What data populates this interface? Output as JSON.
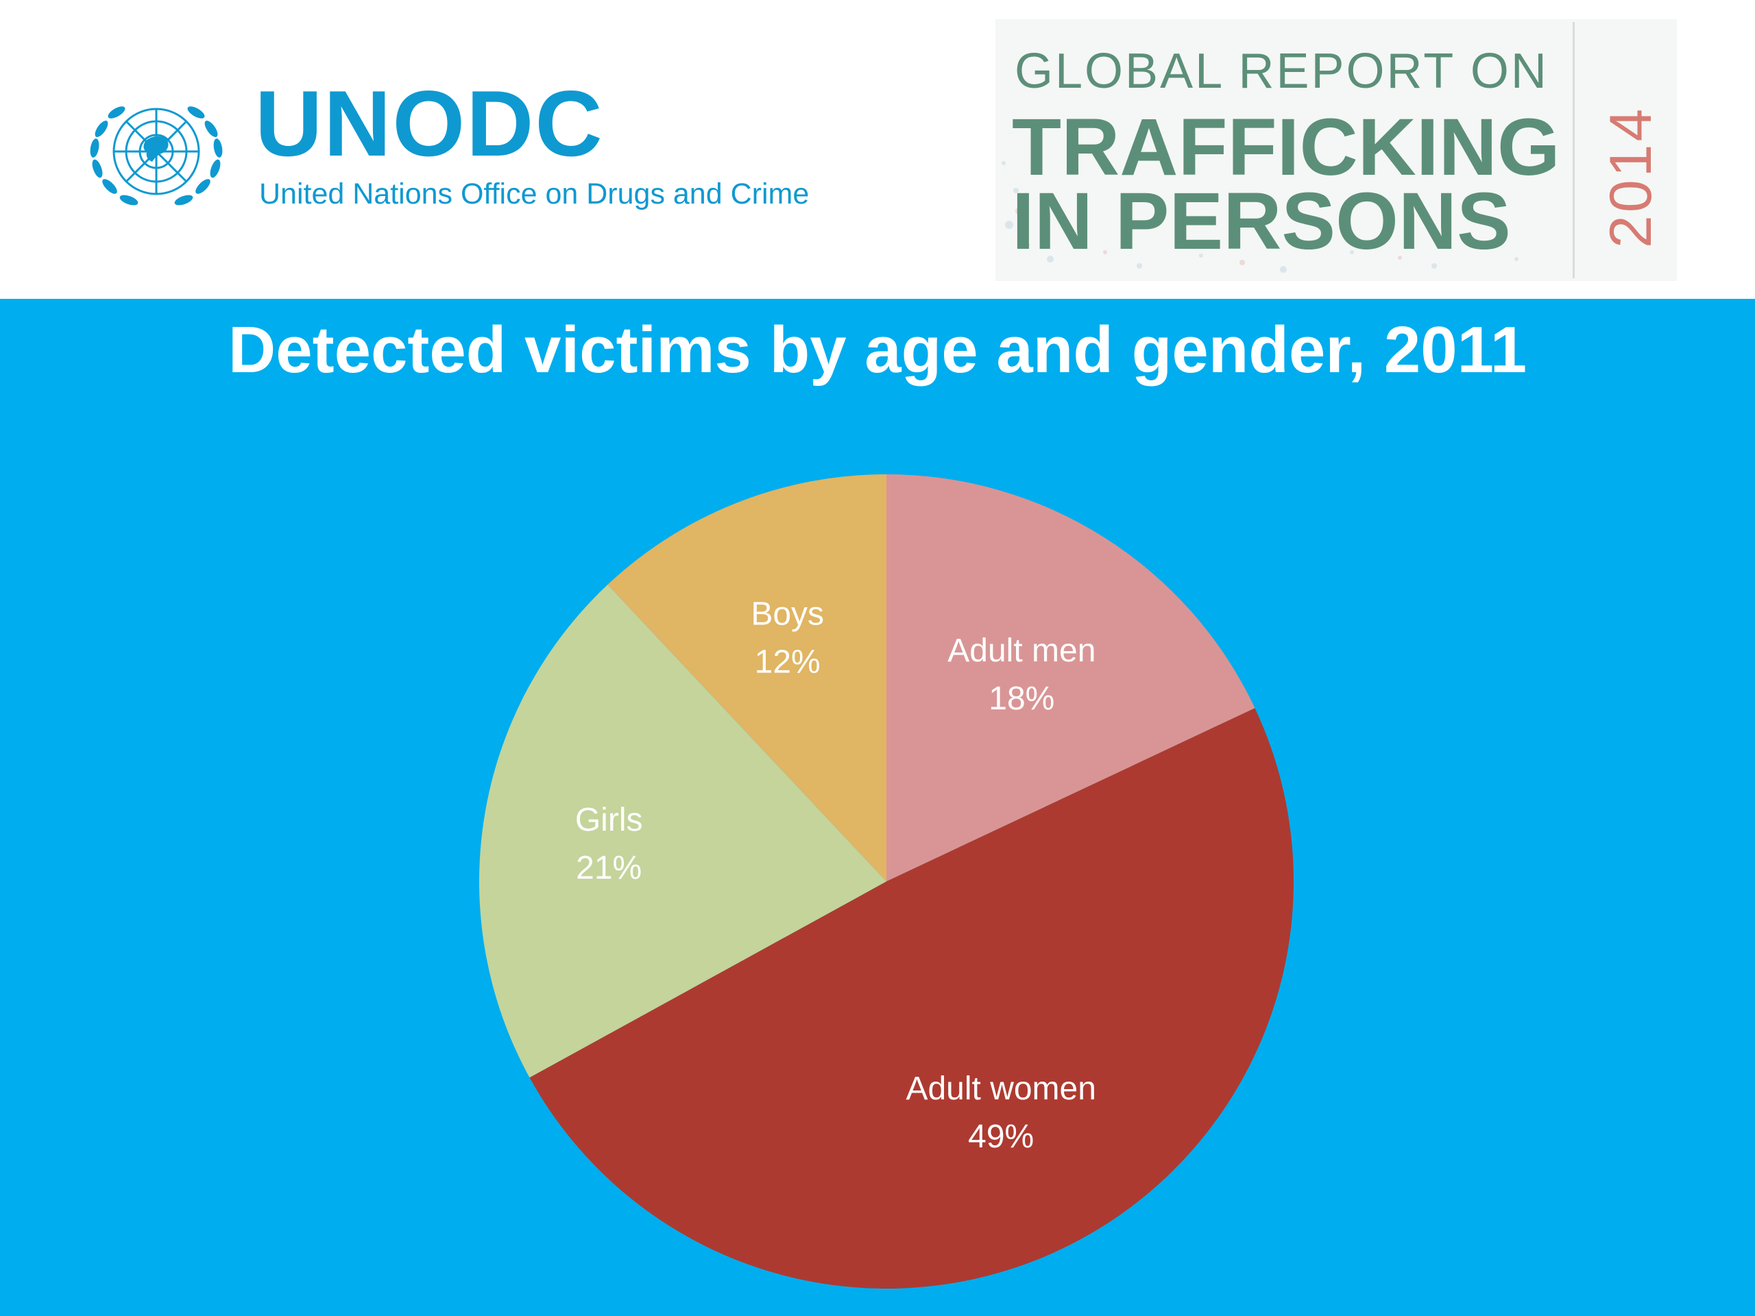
{
  "header": {
    "org_acronym": "UNODC",
    "org_full_name": "United Nations Office on Drugs and Crime",
    "report": {
      "line1": "GLOBAL REPORT ON",
      "line2": "TRAFFICKING",
      "line3": "IN PERSONS",
      "year": "2014"
    }
  },
  "colors": {
    "slide_background": "#00adee",
    "unodc_blue": "#0f99d1",
    "report_green": "#5c8f79",
    "report_year": "#d77b72"
  },
  "icons": {
    "emblem": "un-emblem-icon"
  },
  "chart_data": {
    "type": "pie",
    "title": "Detected victims by age and gender, 2011",
    "slices": [
      {
        "label": "Adult men",
        "value": 18,
        "value_label": "18%",
        "color": "#d99595"
      },
      {
        "label": "Adult women",
        "value": 49,
        "value_label": "49%",
        "color": "#ad3a30"
      },
      {
        "label": "Girls",
        "value": 21,
        "value_label": "21%",
        "color": "#c4d49b"
      },
      {
        "label": "Boys",
        "value": 12,
        "value_label": "12%",
        "color": "#e0b563"
      }
    ],
    "start": "12 o'clock",
    "direction": "clockwise",
    "data_labels": "inside",
    "legend": "none"
  }
}
